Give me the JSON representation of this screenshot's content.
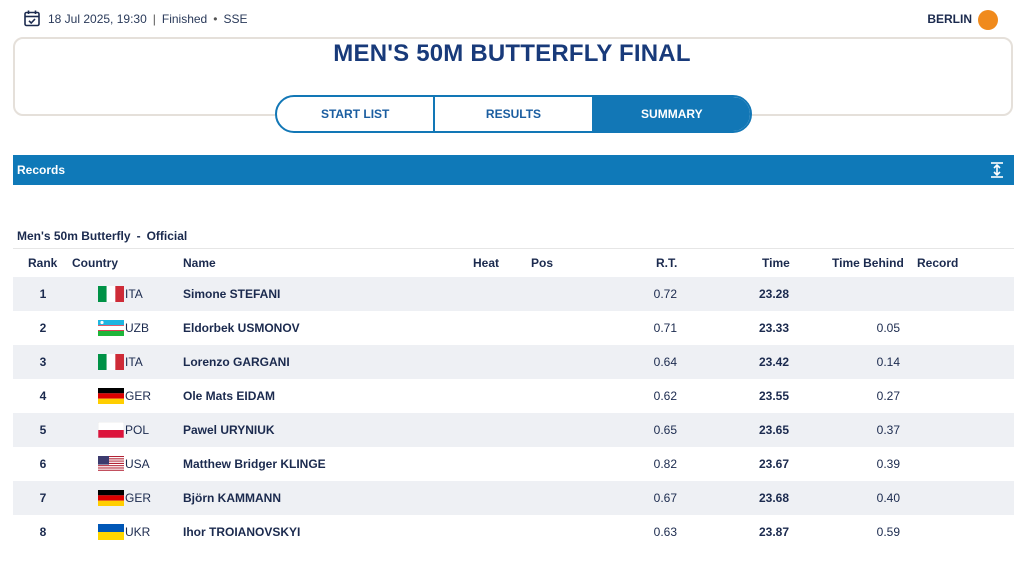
{
  "header": {
    "date": "18 Jul 2025, 19:30",
    "status": "Finished",
    "bullet": "•",
    "venue_code": "SSE",
    "city": "BERLIN",
    "separator": "|"
  },
  "event": {
    "title": "MEN'S 50M BUTTERFLY FINAL",
    "tabs": [
      {
        "label": "START LIST",
        "active": false
      },
      {
        "label": "RESULTS",
        "active": false
      },
      {
        "label": "SUMMARY",
        "active": true
      }
    ]
  },
  "records": {
    "label": "Records"
  },
  "results": {
    "event_name": "Men's 50m Butterfly",
    "dash": "-",
    "status": "Official",
    "columns": {
      "rank": "Rank",
      "country": "Country",
      "name": "Name",
      "heat": "Heat",
      "pos": "Pos",
      "rt": "R.T.",
      "time": "Time",
      "behind": "Time Behind",
      "record": "Record"
    },
    "rows": [
      {
        "rank": "1",
        "code": "ITA",
        "flag": "italy",
        "name": "Simone STEFANI",
        "rt": "0.72",
        "time": "23.28",
        "behind": ""
      },
      {
        "rank": "2",
        "code": "UZB",
        "flag": "uzbekistan",
        "name": "Eldorbek USMONOV",
        "rt": "0.71",
        "time": "23.33",
        "behind": "0.05"
      },
      {
        "rank": "3",
        "code": "ITA",
        "flag": "italy",
        "name": "Lorenzo GARGANI",
        "rt": "0.64",
        "time": "23.42",
        "behind": "0.14"
      },
      {
        "rank": "4",
        "code": "GER",
        "flag": "germany",
        "name": "Ole Mats EIDAM",
        "rt": "0.62",
        "time": "23.55",
        "behind": "0.27"
      },
      {
        "rank": "5",
        "code": "POL",
        "flag": "poland",
        "name": "Pawel URYNIUK",
        "rt": "0.65",
        "time": "23.65",
        "behind": "0.37"
      },
      {
        "rank": "6",
        "code": "USA",
        "flag": "usa",
        "name": "Matthew Bridger KLINGE",
        "rt": "0.82",
        "time": "23.67",
        "behind": "0.39"
      },
      {
        "rank": "7",
        "code": "GER",
        "flag": "germany",
        "name": "Björn KAMMANN",
        "rt": "0.67",
        "time": "23.68",
        "behind": "0.40"
      },
      {
        "rank": "8",
        "code": "UKR",
        "flag": "ukraine",
        "name": "Ihor TROIANOVSKYI",
        "rt": "0.63",
        "time": "23.87",
        "behind": "0.59"
      }
    ]
  },
  "colors": {
    "primary": "#1277b6",
    "records_bar": "#0f79b8",
    "title": "#183a7a",
    "venue_dot": "#f08a1c",
    "row_shade": "#eef0f4"
  },
  "icons": {
    "calendar": "calendar-icon",
    "expand": "expand-icon",
    "venue": "venue-dot-icon"
  }
}
